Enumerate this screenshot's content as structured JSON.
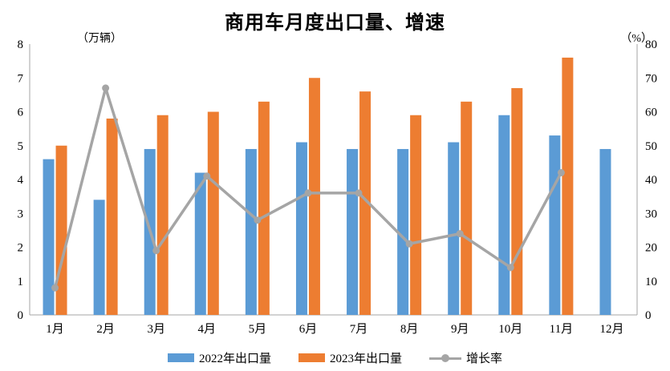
{
  "chart_data": {
    "type": "bar+line",
    "title": "商用车月度出口量、增速",
    "categories": [
      "1月",
      "2月",
      "3月",
      "4月",
      "5月",
      "6月",
      "7月",
      "8月",
      "9月",
      "10月",
      "11月",
      "12月"
    ],
    "series": [
      {
        "name": "2022年出口量",
        "type": "bar",
        "axis": "left",
        "color": "#5B9BD5",
        "values": [
          4.6,
          3.4,
          4.9,
          4.2,
          4.9,
          5.1,
          4.9,
          4.9,
          5.1,
          5.9,
          5.3,
          4.9
        ]
      },
      {
        "name": "2023年出口量",
        "type": "bar",
        "axis": "left",
        "color": "#ED7D31",
        "values": [
          5.0,
          5.8,
          5.9,
          6.0,
          6.3,
          7.0,
          6.6,
          5.9,
          6.3,
          6.7,
          7.6,
          null
        ]
      },
      {
        "name": "增长率",
        "type": "line",
        "axis": "right",
        "color": "#A5A5A5",
        "values": [
          8,
          67,
          19,
          41,
          28,
          36,
          36,
          21,
          24,
          14,
          42,
          null
        ]
      }
    ],
    "left_axis": {
      "unit": "（万辆）",
      "min": 0,
      "max": 8,
      "step": 1,
      "ticks": [
        0,
        1,
        2,
        3,
        4,
        5,
        6,
        7,
        8
      ]
    },
    "right_axis": {
      "unit": "（%）",
      "min": 0,
      "max": 80,
      "step": 10,
      "ticks": [
        0,
        10,
        20,
        30,
        40,
        50,
        60,
        70,
        80
      ]
    },
    "legend_position": "bottom",
    "grid": false,
    "axis_line_color": "#A6A6A6",
    "text_color": "#000000"
  }
}
